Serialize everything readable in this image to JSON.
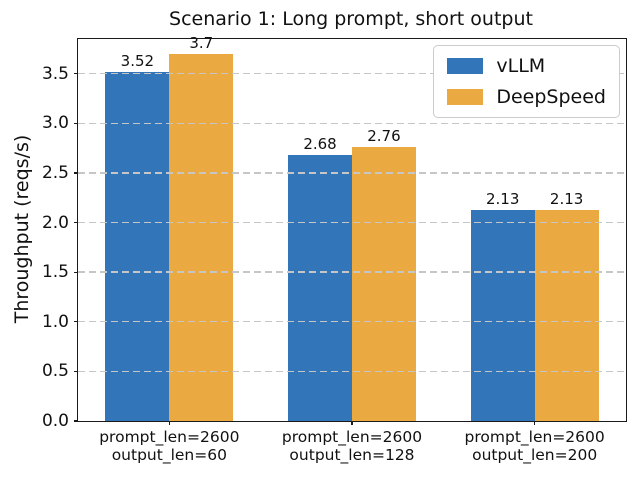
{
  "chart_data": {
    "type": "bar",
    "title": "Scenario 1: Long prompt, short output",
    "xlabel": "",
    "ylabel": "Throughput (reqs/s)",
    "categories": [
      "prompt_len=2600\noutput_len=60",
      "prompt_len=2600\noutput_len=128",
      "prompt_len=2600\noutput_len=200"
    ],
    "series": [
      {
        "name": "vLLM",
        "color": "#3375b9",
        "values": [
          3.52,
          2.68,
          2.13
        ],
        "value_labels": [
          "3.52",
          "2.68",
          "2.13"
        ]
      },
      {
        "name": "DeepSpeed",
        "color": "#ebaa41",
        "values": [
          3.7,
          2.76,
          2.13
        ],
        "value_labels": [
          "3.7",
          "2.76",
          "2.13"
        ]
      }
    ],
    "ylim": [
      0,
      3.85
    ],
    "yticks": [
      "0.0",
      "0.5",
      "1.0",
      "1.5",
      "2.0",
      "2.5",
      "3.0",
      "3.5"
    ],
    "grid": "horizontal-dashed-over-bars",
    "legend_position": "upper right",
    "bar_width_fraction": 0.35
  }
}
